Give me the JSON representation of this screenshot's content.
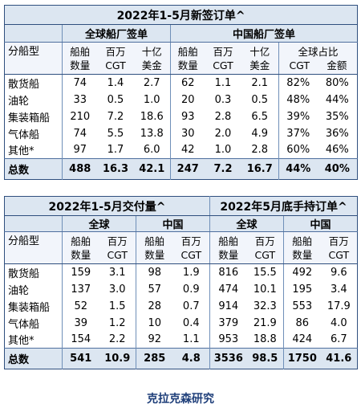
{
  "table1": {
    "title": "2022年1-5月新签订单^",
    "group_global": "全球船厂签单",
    "group_china": "中国船厂签单",
    "label_type": "分船型",
    "headers": [
      [
        "船舶",
        "数量"
      ],
      [
        "百万",
        "CGT"
      ],
      [
        "十亿",
        "美金"
      ],
      [
        "船舶",
        "数量"
      ],
      [
        "百万",
        "CGT"
      ],
      [
        "十亿",
        "美金"
      ]
    ],
    "share_header": "全球占比",
    "share_sub": [
      "CGT",
      "金额"
    ],
    "rows": [
      {
        "type": "散货船",
        "v": [
          "74",
          "1.4",
          "2.7",
          "62",
          "1.1",
          "2.1",
          "82%",
          "80%"
        ]
      },
      {
        "type": "油轮",
        "v": [
          "33",
          "0.5",
          "1.0",
          "20",
          "0.3",
          "0.5",
          "48%",
          "44%"
        ]
      },
      {
        "type": "集装箱船",
        "v": [
          "210",
          "7.2",
          "18.6",
          "93",
          "2.8",
          "6.5",
          "39%",
          "35%"
        ]
      },
      {
        "type": "气体船",
        "v": [
          "74",
          "5.5",
          "13.8",
          "30",
          "2.0",
          "4.9",
          "37%",
          "36%"
        ]
      },
      {
        "type": "其他*",
        "v": [
          "97",
          "1.7",
          "6.0",
          "42",
          "1.0",
          "2.8",
          "60%",
          "46%"
        ]
      }
    ],
    "total": {
      "type": "总数",
      "v": [
        "488",
        "16.3",
        "42.1",
        "247",
        "7.2",
        "16.7",
        "44%",
        "40%"
      ]
    }
  },
  "table2": {
    "title_left": "2022年1-5月交付量^",
    "title_right": "2022年5月底手持订单^",
    "groups": [
      "全球",
      "中国",
      "全球",
      "中国"
    ],
    "label_type": "分船型",
    "headers": [
      [
        "船舶",
        "数量"
      ],
      [
        "百万",
        "CGT"
      ],
      [
        "船舶",
        "数量"
      ],
      [
        "百万",
        "CGT"
      ],
      [
        "船舶",
        "数量"
      ],
      [
        "百万",
        "CGT"
      ],
      [
        "船舶",
        "数量"
      ],
      [
        "百万",
        "CGT"
      ]
    ],
    "rows": [
      {
        "type": "散货船",
        "v": [
          "159",
          "3.1",
          "98",
          "1.9",
          "816",
          "15.5",
          "492",
          "9.6"
        ]
      },
      {
        "type": "油轮",
        "v": [
          "137",
          "3.0",
          "57",
          "0.9",
          "474",
          "10.1",
          "195",
          "3.4"
        ]
      },
      {
        "type": "集装箱船",
        "v": [
          "52",
          "1.5",
          "28",
          "0.7",
          "914",
          "32.3",
          "553",
          "17.9"
        ]
      },
      {
        "type": "气体船",
        "v": [
          "39",
          "1.2",
          "10",
          "0.4",
          "379",
          "21.9",
          "86",
          "4.0"
        ]
      },
      {
        "type": "其他*",
        "v": [
          "154",
          "2.2",
          "92",
          "1.1",
          "953",
          "18.8",
          "424",
          "6.7"
        ]
      }
    ],
    "total": {
      "type": "总数",
      "v": [
        "541",
        "10.9",
        "285",
        "4.8",
        "3536",
        "98.5",
        "1750",
        "41.6"
      ]
    }
  },
  "footer": "克拉克森研究",
  "colors": {
    "header_bg": "#dce6f1",
    "border": "#2f4f7e",
    "footer_text": "#1f3f7a"
  }
}
